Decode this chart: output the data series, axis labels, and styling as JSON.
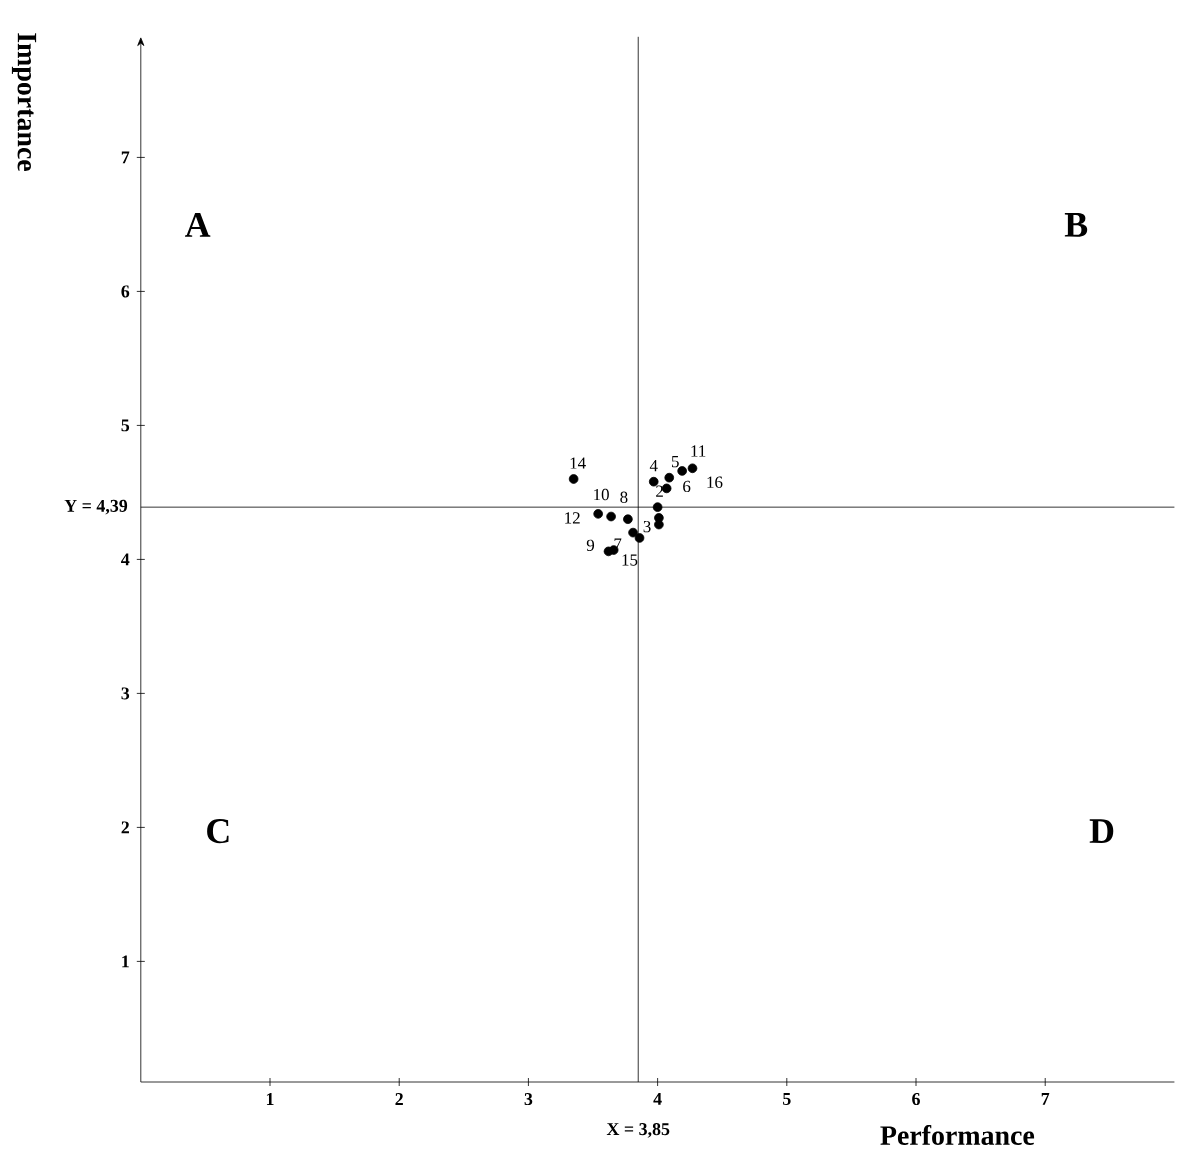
{
  "chart_data": {
    "type": "scatter",
    "xlabel": "Performance",
    "ylabel": "Importance",
    "xlim": [
      0,
      8
    ],
    "ylim": [
      0.1,
      7.9
    ],
    "xticks": [
      1,
      2,
      3,
      4,
      5,
      6,
      7
    ],
    "yticks": [
      1,
      2,
      3,
      4,
      5,
      6,
      7
    ],
    "grid": false,
    "marker": "circle",
    "series": [
      {
        "color": "#000000",
        "x": [
          4.01,
          4.0,
          3.81,
          3.97,
          4.09,
          4.07,
          3.66,
          3.77,
          3.62,
          3.64,
          4.19,
          3.54,
          4.01,
          3.35,
          3.86,
          4.27
        ],
        "values": [
          4.31,
          4.39,
          4.2,
          4.58,
          4.61,
          4.53,
          4.07,
          4.3,
          4.06,
          4.32,
          4.66,
          4.34,
          4.26,
          4.6,
          4.16,
          4.68
        ]
      }
    ],
    "ref_lines": [
      {
        "axis": "x",
        "value": 3.85,
        "label": "X = 3,85",
        "color": "#000000"
      },
      {
        "axis": "y",
        "value": 4.39,
        "label": "Y = 4,39",
        "color": "#000000"
      }
    ],
    "annotations": [
      "A",
      "B",
      "C",
      "D",
      {
        "text": "2",
        "x": 4.0,
        "y": 4.39
      },
      {
        "text": "3",
        "x": 3.81,
        "y": 4.2
      },
      {
        "text": "4",
        "x": 3.97,
        "y": 4.58
      },
      {
        "text": "5",
        "x": 4.09,
        "y": 4.61
      },
      {
        "text": "6",
        "x": 4.07,
        "y": 4.53
      },
      {
        "text": "7",
        "x": 3.66,
        "y": 4.07
      },
      {
        "text": "8",
        "x": 3.77,
        "y": 4.3
      },
      {
        "text": "9",
        "x": 3.62,
        "y": 4.06
      },
      {
        "text": "10",
        "x": 3.64,
        "y": 4.32
      },
      {
        "text": "11",
        "x": 4.19,
        "y": 4.66
      },
      {
        "text": "12",
        "x": 3.54,
        "y": 4.34
      },
      {
        "text": "14",
        "x": 3.35,
        "y": 4.6
      },
      {
        "text": "15",
        "x": 3.86,
        "y": 4.16
      },
      {
        "text": "16",
        "x": 4.27,
        "y": 4.68
      }
    ]
  }
}
